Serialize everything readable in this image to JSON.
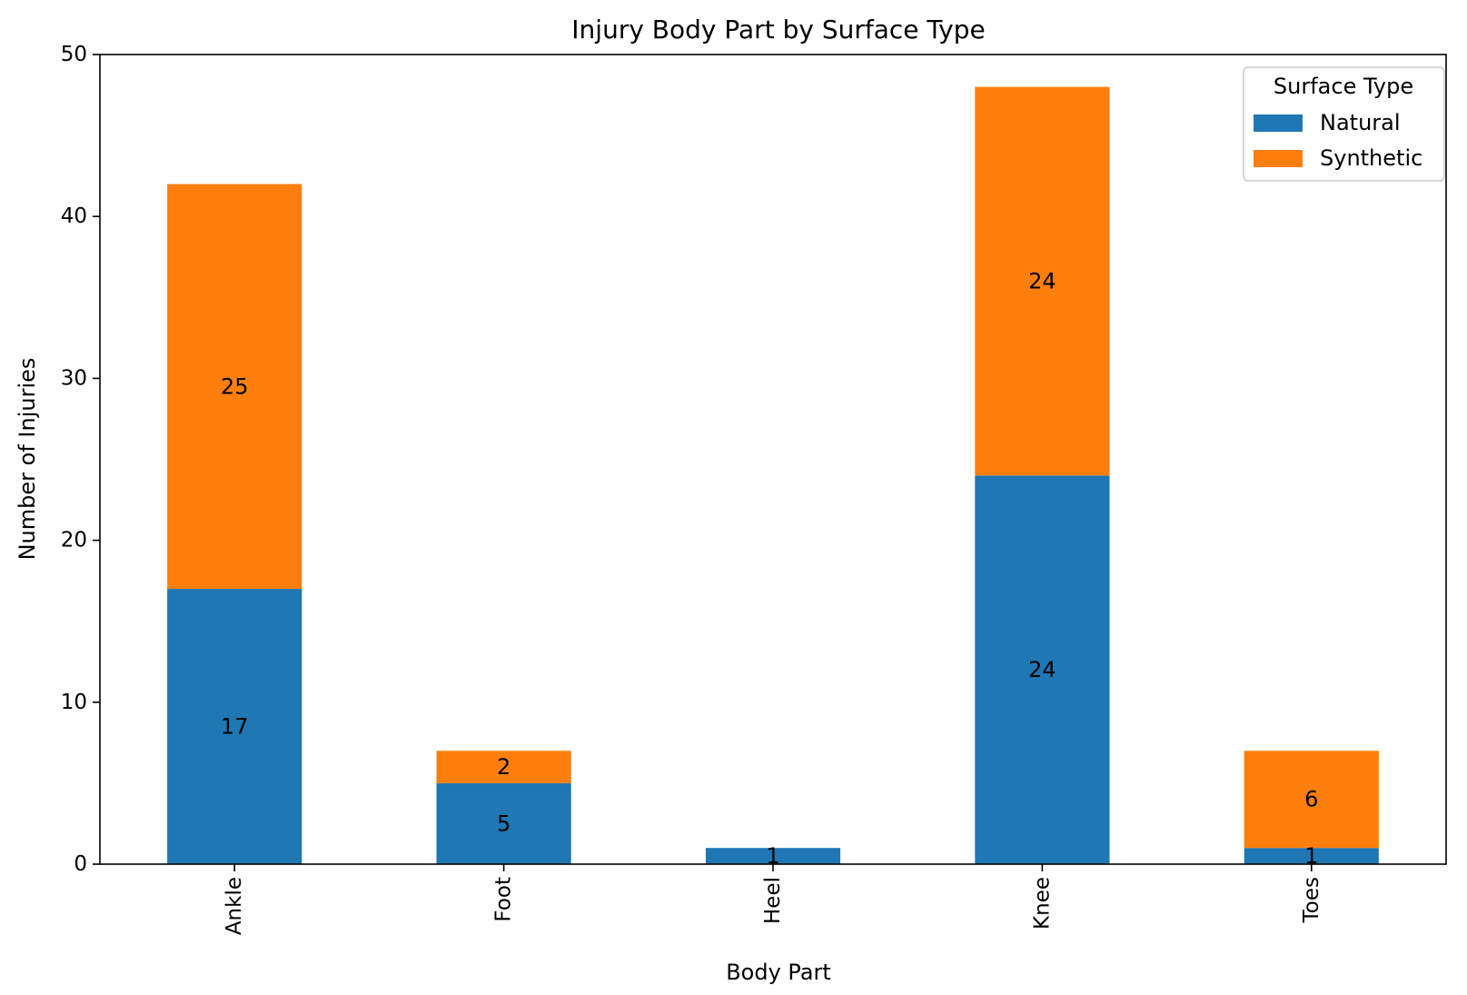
{
  "chart_data": {
    "type": "bar",
    "stacked": true,
    "title": "Injury Body Part by Surface Type",
    "xlabel": "Body Part",
    "ylabel": "Number of Injuries",
    "categories": [
      "Ankle",
      "Foot",
      "Heel",
      "Knee",
      "Toes"
    ],
    "series": [
      {
        "name": "Natural",
        "color": "#1f77b4",
        "values": [
          17,
          5,
          1,
          24,
          1
        ]
      },
      {
        "name": "Synthetic",
        "color": "#ff7f0e",
        "values": [
          25,
          2,
          0,
          24,
          6
        ]
      }
    ],
    "ylim": [
      0,
      50
    ],
    "yticks": [
      0,
      10,
      20,
      30,
      40,
      50
    ],
    "grid": false,
    "legend": {
      "title": "Surface Type",
      "position": "top-right"
    },
    "x_tick_rotation": "vertical"
  }
}
